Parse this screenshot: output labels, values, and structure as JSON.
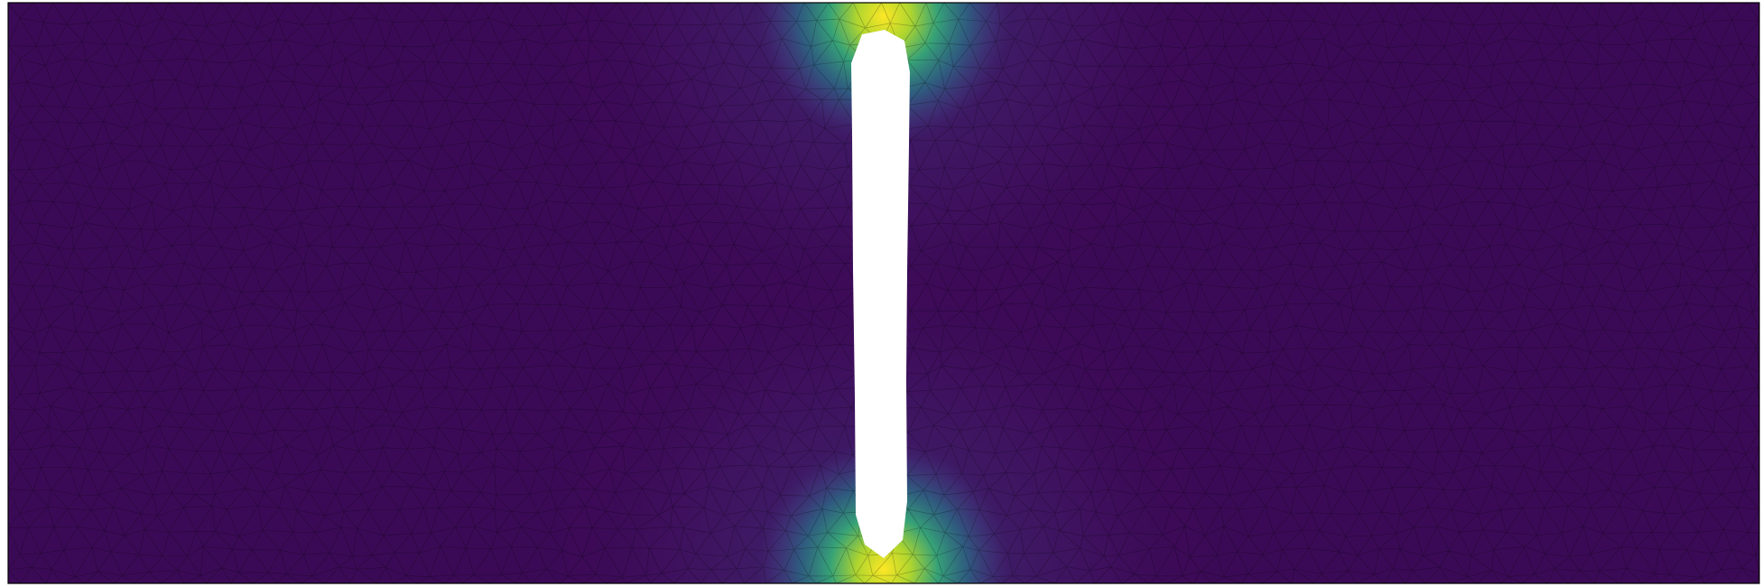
{
  "figure": {
    "colormap": [
      "#440154",
      "#3b528b",
      "#21918c",
      "#5ec962",
      "#fde725"
    ],
    "background_color": "#ffffff",
    "mesh_line_color": "#000000",
    "border_color": "#000000",
    "field": {
      "baseline_level": 0.05,
      "peak_level": 0.95
    },
    "hole_fill": "#ffffff"
  }
}
